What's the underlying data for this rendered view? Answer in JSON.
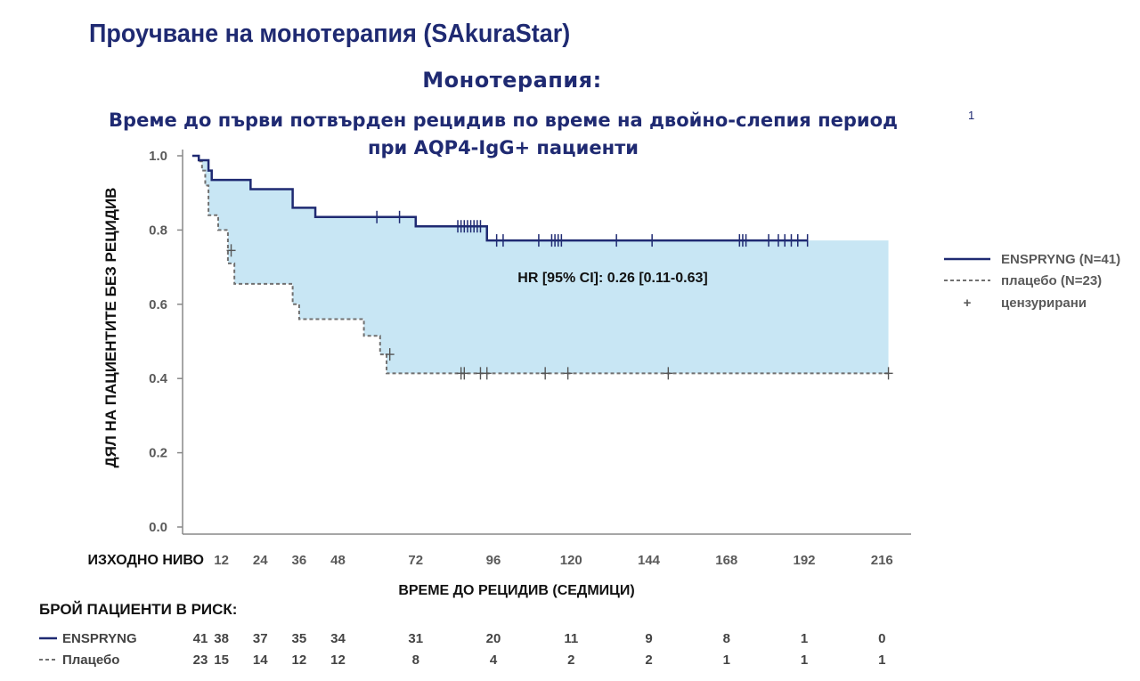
{
  "header": {
    "title": "Проучване на монотерапия (SAkuraStar)",
    "subtitle": "Монотерапия:",
    "chart_title_line1": "Време до първи потвърден рецидив по време на двойно-слепия период",
    "chart_title_line2": "при AQP4-IgG+ пациенти",
    "footnote": "1"
  },
  "colors": {
    "enspryng": "#1f2a72",
    "placebo": "#707070",
    "fill": "#c8e6f4",
    "axis": "#888888"
  },
  "chart_data": {
    "type": "line",
    "title": "Време до първи потвърден рецидив по време на двойно-слепия период при AQP4-IgG+ пациенти",
    "xlabel": "ВРЕМЕ ДО РЕЦИДИВ (СЕДМИЦИ)",
    "ylabel": "ДЯЛ НА ПАЦИЕНТИТЕ БЕЗ РЕЦИДИВ",
    "xlim": [
      0,
      225
    ],
    "ylim": [
      0,
      1.0
    ],
    "x_ticks": [
      0,
      12,
      24,
      36,
      48,
      72,
      96,
      120,
      144,
      168,
      192,
      216
    ],
    "x_tick_labels": [
      "ИЗХОДНО НИВО",
      "12",
      "24",
      "36",
      "48",
      "72",
      "96",
      "120",
      "144",
      "168",
      "192",
      "216"
    ],
    "y_ticks": [
      0.0,
      0.2,
      0.4,
      0.6,
      0.8,
      1.0
    ],
    "y_tick_labels": [
      "0.0",
      "0.2",
      "0.4",
      "0.6",
      "0.8",
      "1.0"
    ],
    "grid": false,
    "legend_position": "right",
    "annotation": "HR [95% CI]: 0.26 [0.11-0.63]",
    "series": [
      {
        "name": "ENSPRYNG (N=41)",
        "style": "solid",
        "steps": [
          [
            3,
            1.0
          ],
          [
            5,
            0.988
          ],
          [
            8,
            0.96
          ],
          [
            9,
            0.935
          ],
          [
            21,
            0.935
          ],
          [
            21,
            0.91
          ],
          [
            34,
            0.91
          ],
          [
            34,
            0.86
          ],
          [
            41,
            0.86
          ],
          [
            41,
            0.835
          ],
          [
            72,
            0.835
          ],
          [
            72,
            0.81
          ],
          [
            94,
            0.81
          ],
          [
            94,
            0.772
          ],
          [
            193,
            0.772
          ]
        ],
        "censored": [
          [
            60,
            0.835
          ],
          [
            67,
            0.835
          ],
          [
            85,
            0.81
          ],
          [
            86,
            0.81
          ],
          [
            87,
            0.81
          ],
          [
            88,
            0.81
          ],
          [
            89,
            0.81
          ],
          [
            90,
            0.81
          ],
          [
            91,
            0.81
          ],
          [
            92,
            0.81
          ],
          [
            97,
            0.772
          ],
          [
            99,
            0.772
          ],
          [
            110,
            0.772
          ],
          [
            114,
            0.772
          ],
          [
            115,
            0.772
          ],
          [
            116,
            0.772
          ],
          [
            117,
            0.772
          ],
          [
            134,
            0.772
          ],
          [
            145,
            0.772
          ],
          [
            172,
            0.772
          ],
          [
            173,
            0.772
          ],
          [
            174,
            0.772
          ],
          [
            181,
            0.772
          ],
          [
            184,
            0.772
          ],
          [
            186,
            0.772
          ],
          [
            188,
            0.772
          ],
          [
            190,
            0.772
          ],
          [
            193,
            0.772
          ]
        ]
      },
      {
        "name": "плацебо (N=23)",
        "style": "dashed",
        "steps": [
          [
            3,
            1.0
          ],
          [
            5,
            0.985
          ],
          [
            6,
            0.96
          ],
          [
            7,
            0.92
          ],
          [
            8,
            0.84
          ],
          [
            11,
            0.84
          ],
          [
            11,
            0.8
          ],
          [
            14,
            0.8
          ],
          [
            14,
            0.71
          ],
          [
            16,
            0.71
          ],
          [
            16,
            0.655
          ],
          [
            34,
            0.655
          ],
          [
            34,
            0.6
          ],
          [
            36,
            0.6
          ],
          [
            36,
            0.56
          ],
          [
            56,
            0.56
          ],
          [
            56,
            0.515
          ],
          [
            61,
            0.515
          ],
          [
            61,
            0.465
          ],
          [
            63,
            0.465
          ],
          [
            63,
            0.414
          ],
          [
            218,
            0.414
          ]
        ],
        "censored": [
          [
            15,
            0.745
          ],
          [
            64,
            0.465
          ],
          [
            86,
            0.414
          ],
          [
            87,
            0.414
          ],
          [
            92,
            0.414
          ],
          [
            94,
            0.414
          ],
          [
            112,
            0.414
          ],
          [
            119,
            0.414
          ],
          [
            150,
            0.414
          ],
          [
            218,
            0.414
          ]
        ]
      }
    ],
    "shaded_region": {
      "between": [
        "ENSPRYNG (N=41)",
        "плацебо (N=23)"
      ],
      "x_end": 218
    },
    "legend": {
      "items": [
        {
          "label": "ENSPRYNG (N=41)",
          "style": "solid"
        },
        {
          "label": "плацебо (N=23)",
          "style": "dashed"
        },
        {
          "label": "цензурирани",
          "style": "marker",
          "symbol": "+"
        }
      ]
    },
    "risk_table": {
      "title": "БРОЙ ПАЦИЕНТИ В РИСК:",
      "rows": [
        {
          "label": "ENSPRYNG",
          "style": "solid",
          "values": [
            "41",
            "38",
            "37",
            "35",
            "34",
            "31",
            "20",
            "11",
            "9",
            "8",
            "1",
            "0"
          ]
        },
        {
          "label": "Плацебо",
          "style": "dashed",
          "values": [
            "23",
            "15",
            "14",
            "12",
            "12",
            "8",
            "4",
            "2",
            "2",
            "1",
            "1",
            "1"
          ]
        }
      ]
    }
  }
}
